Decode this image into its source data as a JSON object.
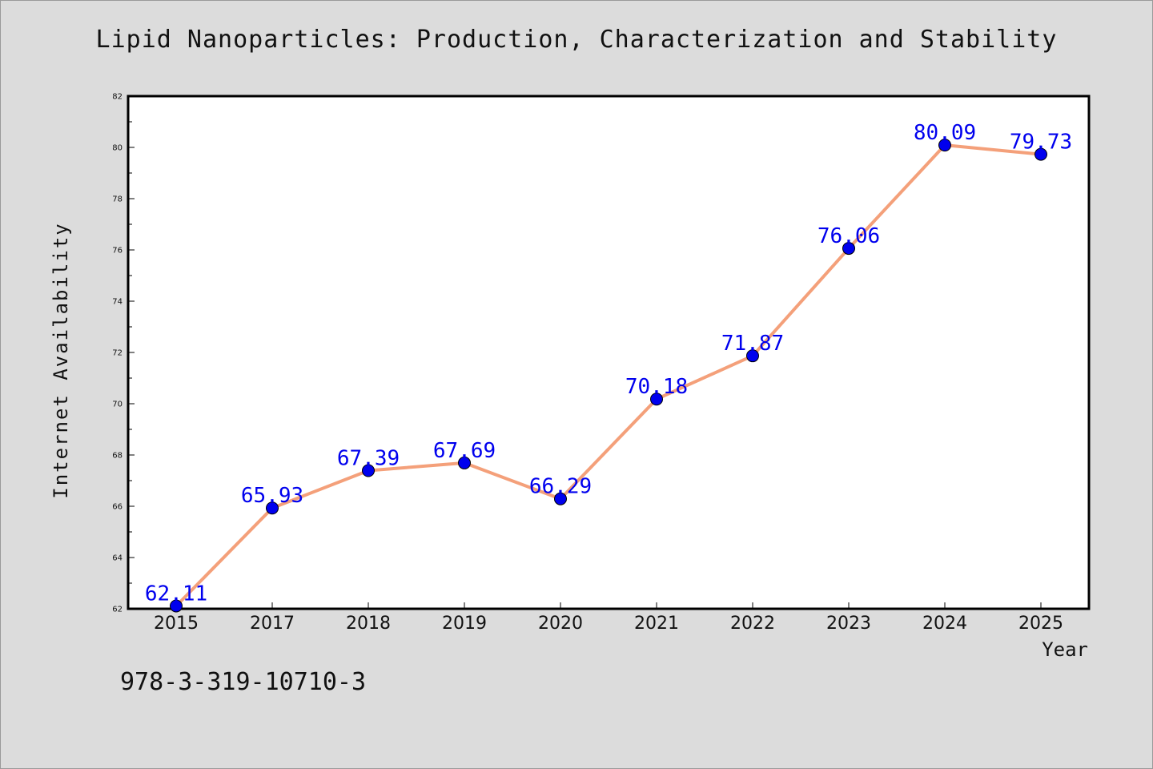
{
  "chart_data": {
    "type": "line",
    "title": "Lipid Nanoparticles: Production, Characterization and Stability",
    "xlabel": "Year",
    "ylabel": "Internet Availability",
    "categories": [
      "2015",
      "2017",
      "2018",
      "2019",
      "2020",
      "2021",
      "2022",
      "2023",
      "2024",
      "2025"
    ],
    "series": [
      {
        "values": [
          62.11,
          65.93,
          67.39,
          67.69,
          66.29,
          70.18,
          71.87,
          76.06,
          80.09,
          79.73
        ],
        "labels": [
          "62.11",
          "65.93",
          "67.39",
          "67.69",
          "66.29",
          "70.18",
          "71.87",
          "76.06",
          "80.09",
          "79.73"
        ],
        "line_color": "#f4a07a",
        "marker_color": "#0000ee",
        "label_color": "#0000ee"
      }
    ],
    "ylim": [
      62,
      82
    ],
    "yticks": [
      "62",
      "64",
      "66",
      "68",
      "70",
      "72",
      "74",
      "76",
      "78",
      "80",
      "82"
    ],
    "grid": false,
    "legend": "none"
  },
  "footer": {
    "isbn": "978-3-319-10710-3"
  },
  "colors": {
    "background": "#dcdcdc",
    "plot_background": "#ffffff",
    "line": "#f4a07a",
    "marker": "#0000ee"
  }
}
